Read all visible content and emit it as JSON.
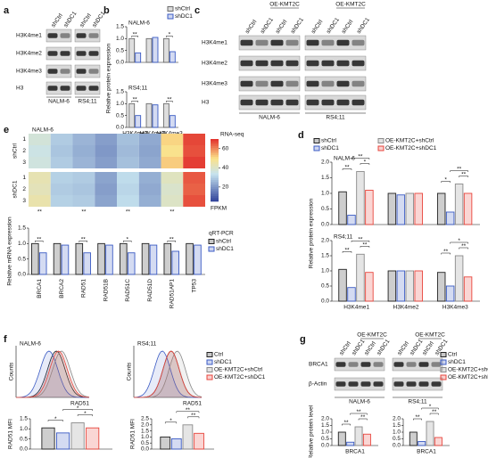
{
  "panel_labels": [
    "a",
    "b",
    "c",
    "d",
    "e",
    "f",
    "g"
  ],
  "blots": [
    {
      "rows": [
        "H3K4me1",
        "H3K4me2",
        "H3K4me3",
        "H3"
      ],
      "cell_lines": [
        {
          "name": "NALM-6",
          "lanes": [
            "shCtrl",
            "shDC1"
          ]
        },
        {
          "name": "RS4;11",
          "lanes": [
            "shCtrl",
            "shDC1"
          ]
        }
      ]
    },
    {
      "rows": [
        "H3K4me1",
        "H3K4me2",
        "H3K4me3",
        "H3"
      ],
      "cell_lines": [
        {
          "name": "NALM-6",
          "lanes": [
            "shCtrl",
            "shDC1",
            "shCtrl",
            "shDC1"
          ],
          "oe_label": "OE-KMT2C"
        },
        {
          "name": "RS4;11",
          "lanes": [
            "shCtrl",
            "shDC1",
            "shCtrl",
            "shDC1"
          ],
          "oe_label": "OE-KMT2C"
        }
      ]
    },
    {
      "rows": [
        "BRCA1",
        "β-Actin"
      ],
      "cell_lines": [
        {
          "name": "NALM-6",
          "lanes": [
            "shCtrl",
            "shDC1",
            "shCtrl",
            "shDC1"
          ],
          "oe_label": "OE-KMT2C"
        },
        {
          "name": "RS4;11",
          "lanes": [
            "shCtrl",
            "shDC1",
            "shCtrl",
            "shDC1"
          ],
          "oe_label": "OE-KMT2C"
        }
      ]
    }
  ],
  "flow": [
    {
      "title": "NALM-6",
      "y_label": "Counts",
      "x_label": "RAD51"
    },
    {
      "title": "RS4;11",
      "y_label": "Counts",
      "x_label": "RAD51"
    }
  ],
  "chart_data": [
    {
      "type": "bar",
      "subtitle": "NALM-6",
      "y_label": "Relative protein expression",
      "legend": "top-right",
      "categories": [
        null,
        null,
        null
      ],
      "series": [
        {
          "name": "shCtrl",
          "color": "#6b6b6b",
          "values": [
            1.0,
            1.0,
            1.0
          ]
        },
        {
          "name": "shDC1",
          "color": "#3b5bc4",
          "values": [
            0.4,
            1.05,
            0.45
          ]
        }
      ],
      "significance": [
        [
          "**"
        ],
        null,
        [
          "*"
        ]
      ],
      "ylim": [
        0,
        1.5
      ],
      "yticks": [
        {
          "value": 0,
          "label": "0.0"
        },
        0.5,
        {
          "value": 1,
          "label": "1.0"
        },
        1.5
      ]
    },
    {
      "type": "bar",
      "subtitle": "RS4;11",
      "categories": [
        "H3K4me1",
        "H3K4me2",
        "H3K4me3"
      ],
      "series": [
        {
          "name": "shCtrl",
          "color": "#6b6b6b",
          "values": [
            1.0,
            1.0,
            1.0
          ]
        },
        {
          "name": "shDC1",
          "color": "#3b5bc4",
          "values": [
            0.5,
            0.95,
            0.5
          ]
        }
      ],
      "significance": [
        [
          "**"
        ],
        null,
        [
          "**"
        ]
      ],
      "ylim": [
        0,
        1.5
      ],
      "yticks": [
        {
          "value": 0,
          "label": "0.0"
        },
        0.5,
        {
          "value": 1,
          "label": "1.0"
        },
        1.5
      ]
    },
    {
      "type": "bar",
      "subtitle": "NALM-6",
      "y_label": "Relative protein expression",
      "legend": "top",
      "categories": [
        null,
        null,
        null
      ],
      "series": [
        {
          "name": "shCtrl",
          "color": "#222222",
          "values": [
            1.05,
            1.0,
            1.0
          ]
        },
        {
          "name": "shDC1",
          "color": "#3b5bc4",
          "values": [
            0.3,
            0.95,
            0.4
          ]
        },
        {
          "name": "OE-KMT2C+shCtrl",
          "color": "#8a8a8a",
          "values": [
            1.7,
            1.0,
            1.3
          ]
        },
        {
          "name": "OE-KMT2C+shDC1",
          "color": "#e8453c",
          "values": [
            1.1,
            1.0,
            1.0
          ]
        }
      ],
      "significance": [
        [
          "**",
          "*",
          "**"
        ],
        null,
        [
          "*",
          "**",
          "**"
        ]
      ],
      "ylim": [
        0,
        2
      ],
      "yticks": [
        {
          "value": 0,
          "label": "0.0"
        },
        0.5,
        {
          "value": 1,
          "label": "1.0"
        },
        1.5,
        {
          "value": 2,
          "label": "2.0"
        }
      ]
    },
    {
      "type": "bar",
      "subtitle": "RS4;11",
      "categories": [
        "H3K4me1",
        "H3K4me2",
        "H3K4me3"
      ],
      "series": [
        {
          "name": "shCtrl",
          "color": "#222222",
          "values": [
            1.05,
            1.0,
            0.95
          ]
        },
        {
          "name": "shDC1",
          "color": "#3b5bc4",
          "values": [
            0.45,
            1.0,
            0.5
          ]
        },
        {
          "name": "OE-KMT2C+shCtrl",
          "color": "#8a8a8a",
          "values": [
            1.55,
            1.0,
            1.5
          ]
        },
        {
          "name": "OE-KMT2C+shDC1",
          "color": "#e8453c",
          "values": [
            0.95,
            1.0,
            0.8
          ]
        }
      ],
      "significance": [
        [
          "**",
          "**",
          "**"
        ],
        null,
        [
          "**",
          "**",
          "*"
        ]
      ],
      "ylim": [
        0,
        2
      ],
      "yticks": [
        {
          "value": 0,
          "label": "0.0"
        },
        0.5,
        {
          "value": 1,
          "label": "1.0"
        },
        1.5,
        {
          "value": 2,
          "label": "2.0"
        }
      ]
    },
    {
      "type": "heatmap",
      "title": "NALM-6",
      "colorbar_label": "RNA-seq",
      "colorbar_unit": "FPKM",
      "row_groups": [
        "shCtrl",
        "shDC1"
      ],
      "row_labels": [
        "1",
        "2",
        "3",
        "1",
        "2",
        "3"
      ],
      "values": [
        [
          38,
          30,
          26,
          22,
          28,
          24,
          52,
          68
        ],
        [
          36,
          29,
          25,
          21,
          27,
          23,
          50,
          67
        ],
        [
          37,
          30,
          26,
          22,
          28,
          24,
          53,
          69
        ],
        [
          44,
          31,
          30,
          23,
          33,
          25,
          42,
          66
        ],
        [
          43,
          30,
          29,
          22,
          32,
          24,
          40,
          65
        ],
        [
          45,
          31,
          30,
          23,
          33,
          25,
          41,
          67
        ]
      ],
      "significance": [
        "**",
        null,
        "**",
        null,
        "**",
        null,
        "**",
        null
      ],
      "clim": [
        5,
        70
      ],
      "cticks": [
        20,
        40,
        60
      ]
    },
    {
      "type": "bar",
      "y_label": "Relative mRNA expression",
      "legend": "right",
      "legend_title": "qRT-PCR",
      "categories": [
        "BRCA1",
        "BRCA2",
        "RAD51",
        "RAD51B",
        "RAD51C",
        "RAD51D",
        "RAD51AP1",
        "TP53"
      ],
      "series": [
        {
          "name": "shCtrl",
          "color": "#222222",
          "values": [
            1.0,
            1.0,
            1.0,
            1.0,
            1.0,
            1.0,
            1.0,
            1.0
          ]
        },
        {
          "name": "shDC1",
          "color": "#3b5bc4",
          "values": [
            0.7,
            0.95,
            0.7,
            0.95,
            0.7,
            0.95,
            0.75,
            0.95
          ]
        }
      ],
      "significance": [
        [
          "**"
        ],
        null,
        [
          "**"
        ],
        null,
        [
          "*"
        ],
        null,
        [
          "**"
        ],
        null
      ],
      "ylim": [
        0,
        1.5
      ],
      "yticks": [
        {
          "value": 0,
          "label": "0.0"
        },
        0.5,
        {
          "value": 1,
          "label": "1.0"
        },
        1.5
      ]
    },
    {
      "type": "bar",
      "y_label": "RAD51 MFI",
      "legend": "right",
      "categories": [
        null
      ],
      "series": [
        {
          "name": "Ctrl",
          "color": "#222222",
          "values": [
            1.05
          ]
        },
        {
          "name": "shDC1",
          "color": "#3b5bc4",
          "values": [
            0.8
          ]
        },
        {
          "name": "OE-KMT2C+shCtrl",
          "color": "#8a8a8a",
          "values": [
            1.3
          ]
        },
        {
          "name": "OE-KMT2C+shDC1",
          "color": "#e8453c",
          "values": [
            1.05
          ]
        }
      ],
      "significance": [
        [
          "*",
          "*",
          "*"
        ]
      ],
      "ylim": [
        0,
        1.5
      ],
      "yticks": [
        {
          "value": 0,
          "label": "0.0"
        },
        0.5,
        {
          "value": 1,
          "label": "1.0"
        },
        1.5
      ]
    },
    {
      "type": "bar",
      "y_label": "RAD51 MFI",
      "categories": [
        null
      ],
      "series": [
        {
          "name": "Ctrl",
          "color": "#222222",
          "values": [
            1.0
          ]
        },
        {
          "name": "shDC1",
          "color": "#3b5bc4",
          "values": [
            0.85
          ]
        },
        {
          "name": "OE-KMT2C+shCtrl",
          "color": "#8a8a8a",
          "values": [
            2.0
          ]
        },
        {
          "name": "OE-KMT2C+shDC1",
          "color": "#e8453c",
          "values": [
            1.3
          ]
        }
      ],
      "significance": [
        [
          "*",
          "**",
          "**"
        ]
      ],
      "ylim": [
        0,
        2.5
      ],
      "yticks": [
        {
          "value": 0,
          "label": "0.0"
        },
        0.5,
        {
          "value": 1,
          "label": "1.0"
        },
        1.5,
        {
          "value": 2,
          "label": "2.0"
        },
        2.5
      ]
    },
    {
      "type": "bar",
      "y_label": "Relative protein level",
      "legend": "right",
      "categories": [
        "BRCA1"
      ],
      "series": [
        {
          "name": "Ctrl",
          "color": "#222222",
          "values": [
            1.0
          ]
        },
        {
          "name": "shDC1",
          "color": "#3b5bc4",
          "values": [
            0.25
          ]
        },
        {
          "name": "OE-KMT2C+shCtrl",
          "color": "#8a8a8a",
          "values": [
            1.4
          ]
        },
        {
          "name": "OE-KMT2C+shDC1",
          "color": "#e8453c",
          "values": [
            0.85
          ]
        }
      ],
      "significance": [
        [
          "**",
          "**",
          "**"
        ]
      ],
      "ylim": [
        0,
        2
      ],
      "yticks": [
        {
          "value": 0,
          "label": "0.0"
        },
        0.5,
        {
          "value": 1,
          "label": "1.0"
        },
        1.5,
        {
          "value": 2,
          "label": "2.0"
        }
      ]
    },
    {
      "type": "bar",
      "categories": [
        "BRCA1"
      ],
      "series": [
        {
          "name": "Ctrl",
          "color": "#222222",
          "values": [
            1.0
          ]
        },
        {
          "name": "shDC1",
          "color": "#3b5bc4",
          "values": [
            0.3
          ]
        },
        {
          "name": "OE-KMT2C+shCtrl",
          "color": "#8a8a8a",
          "values": [
            1.8
          ]
        },
        {
          "name": "OE-KMT2C+shDC1",
          "color": "#e8453c",
          "values": [
            0.6
          ]
        }
      ],
      "significance": [
        [
          "**",
          "**",
          "*"
        ]
      ],
      "ylim": [
        0,
        2
      ],
      "yticks": [
        {
          "value": 0,
          "label": "0.0"
        },
        0.5,
        {
          "value": 1,
          "label": "1.0"
        },
        1.5,
        {
          "value": 2,
          "label": "2.0"
        }
      ]
    }
  ]
}
